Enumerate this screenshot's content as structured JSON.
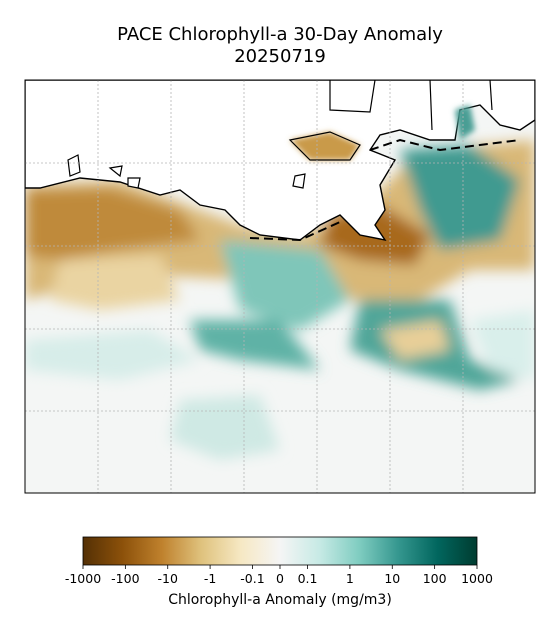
{
  "title": "PACE Chlorophyll-a 30-Day Anomaly",
  "date": "20250719",
  "colorbar": {
    "label": "Chlorophyll-a Anomaly (mg/m3)",
    "scale": "symlog",
    "linthresh": 0.1,
    "lim": [
      -1000,
      1000
    ],
    "ticks": [
      -1000,
      -100,
      -10,
      -1,
      -0.1,
      0,
      0.1,
      1,
      10,
      100,
      1000
    ]
  }
}
